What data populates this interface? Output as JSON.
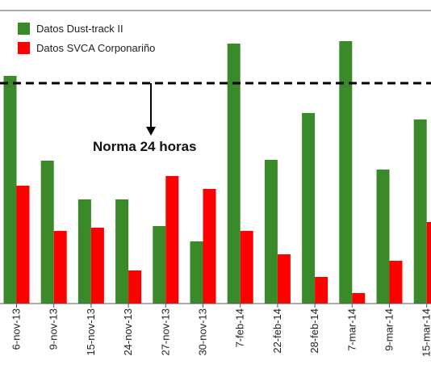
{
  "chart_data": {
    "type": "bar",
    "categories": [
      "6-nov-13",
      "9-nov-13",
      "15-nov-13",
      "24-nov-13",
      "27-nov-13",
      "30-nov-13",
      "7-feb-14",
      "22-feb-14",
      "28-feb-14",
      "7-mar-14",
      "9-mar-14",
      "15-mar-14"
    ],
    "series": [
      {
        "name": "Datos Dust-track II",
        "color": "#3a8a2a",
        "values": [
          282,
          177,
          129,
          129,
          96,
          77,
          322,
          178,
          236,
          325,
          166,
          228
        ]
      },
      {
        "name": "Datos SVCA Corponariño",
        "color": "#ff0000",
        "values": [
          146,
          90,
          94,
          41,
          158,
          142,
          90,
          61,
          33,
          13,
          53,
          101
        ]
      }
    ],
    "ylim": [
      0,
      362
    ],
    "reference_line": {
      "value": 273,
      "label": "Norma 24 horas"
    },
    "grid": false,
    "legend_position": "top-left"
  }
}
